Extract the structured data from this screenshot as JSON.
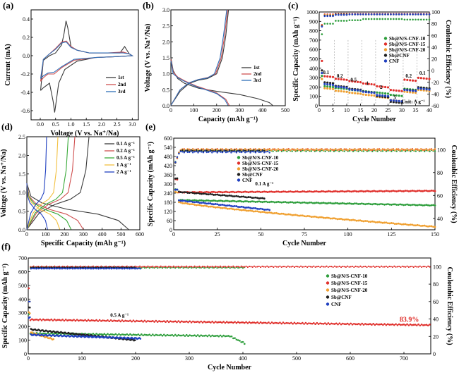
{
  "chart_data": [
    {
      "id": "a",
      "type": "line",
      "panel_label": "(a)",
      "xlabel": "Voltage (V vs. Na⁺/Na)",
      "ylabel": "Current (mA)",
      "xlim": [
        -0.3,
        3.2
      ],
      "ylim": [
        -0.7,
        0.5
      ],
      "xticks": [
        0.0,
        0.5,
        1.0,
        1.5,
        2.0,
        2.5,
        3.0
      ],
      "yticks": [
        -0.6,
        -0.4,
        -0.2,
        0.0,
        0.2,
        0.4
      ],
      "legend": {
        "position": "center-right",
        "entries": [
          "1st",
          "2nd",
          "3rd"
        ]
      },
      "series": [
        {
          "name": "1st",
          "color": "#3a3a3a",
          "points": [
            [
              0.01,
              -0.38
            ],
            [
              0.1,
              -0.35
            ],
            [
              0.3,
              -0.3
            ],
            [
              0.42,
              -0.5
            ],
            [
              0.47,
              -0.62
            ],
            [
              0.52,
              -0.5
            ],
            [
              0.6,
              -0.3
            ],
            [
              0.8,
              -0.15
            ],
            [
              1.2,
              -0.06
            ],
            [
              1.8,
              -0.02
            ],
            [
              2.5,
              -0.01
            ],
            [
              3.0,
              0.0
            ],
            [
              2.9,
              0.02
            ],
            [
              2.75,
              0.1
            ],
            [
              2.6,
              0.03
            ],
            [
              2.2,
              0.03
            ],
            [
              1.6,
              0.03
            ],
            [
              1.2,
              0.06
            ],
            [
              1.0,
              0.1
            ],
            [
              0.9,
              0.3
            ],
            [
              0.84,
              0.38
            ],
            [
              0.78,
              0.25
            ],
            [
              0.7,
              0.12
            ],
            [
              0.5,
              0.03
            ],
            [
              0.3,
              0.0
            ],
            [
              0.1,
              -0.05
            ],
            [
              0.01,
              -0.38
            ]
          ]
        },
        {
          "name": "2nd",
          "color": "#d05050",
          "points": [
            [
              0.01,
              -0.28
            ],
            [
              0.1,
              -0.24
            ],
            [
              0.25,
              -0.2
            ],
            [
              0.45,
              -0.2
            ],
            [
              0.7,
              -0.13
            ],
            [
              1.1,
              -0.05
            ],
            [
              1.8,
              -0.02
            ],
            [
              2.5,
              -0.01
            ],
            [
              3.0,
              0.0
            ],
            [
              2.9,
              0.02
            ],
            [
              2.7,
              0.04
            ],
            [
              2.2,
              0.03
            ],
            [
              1.6,
              0.03
            ],
            [
              1.2,
              0.06
            ],
            [
              1.0,
              0.1
            ],
            [
              0.85,
              0.16
            ],
            [
              0.7,
              0.15
            ],
            [
              0.5,
              0.08
            ],
            [
              0.3,
              0.02
            ],
            [
              0.1,
              -0.04
            ],
            [
              0.01,
              -0.28
            ]
          ]
        },
        {
          "name": "3rd",
          "color": "#3070b8",
          "points": [
            [
              0.01,
              -0.25
            ],
            [
              0.1,
              -0.22
            ],
            [
              0.25,
              -0.19
            ],
            [
              0.45,
              -0.18
            ],
            [
              0.7,
              -0.12
            ],
            [
              1.1,
              -0.04
            ],
            [
              1.8,
              -0.02
            ],
            [
              2.5,
              -0.01
            ],
            [
              3.0,
              0.0
            ],
            [
              2.9,
              0.02
            ],
            [
              2.7,
              0.03
            ],
            [
              2.2,
              0.03
            ],
            [
              1.6,
              0.03
            ],
            [
              1.2,
              0.06
            ],
            [
              1.0,
              0.09
            ],
            [
              0.85,
              0.15
            ],
            [
              0.7,
              0.14
            ],
            [
              0.5,
              0.07
            ],
            [
              0.3,
              0.02
            ],
            [
              0.1,
              -0.04
            ],
            [
              0.01,
              -0.25
            ]
          ]
        }
      ]
    },
    {
      "id": "b",
      "type": "line",
      "panel_label": "(b)",
      "xlabel": "Capacity (mAh g⁻¹)",
      "ylabel": "Voltage (V vs. Na⁺/Na)",
      "xlim": [
        0,
        500
      ],
      "ylim": [
        0,
        3.0
      ],
      "xticks": [
        0,
        100,
        200,
        300,
        400,
        500
      ],
      "yticks": [
        0.0,
        0.5,
        1.0,
        1.5,
        2.0,
        2.5,
        3.0
      ],
      "legend": {
        "position": "bottom-right",
        "entries": [
          "1st",
          "2nd",
          "3rd"
        ]
      },
      "series": [
        {
          "name": "1st",
          "color": "#3a3a3a",
          "points": [
            [
              0,
              1.5
            ],
            [
              10,
              1.1
            ],
            [
              30,
              0.85
            ],
            [
              60,
              0.7
            ],
            [
              120,
              0.55
            ],
            [
              200,
              0.45
            ],
            [
              300,
              0.35
            ],
            [
              380,
              0.22
            ],
            [
              430,
              0.1
            ],
            [
              445,
              0.01
            ]
          ]
        },
        {
          "name": "1st",
          "color": "#3a3a3a",
          "points": [
            [
              0,
              0.01
            ],
            [
              40,
              0.45
            ],
            [
              80,
              0.7
            ],
            [
              120,
              0.8
            ],
            [
              160,
              0.85
            ],
            [
              200,
              1.0
            ],
            [
              225,
              1.5
            ],
            [
              240,
              2.2
            ],
            [
              252,
              3.0
            ]
          ]
        },
        {
          "name": "2nd",
          "color": "#d05050",
          "points": [
            [
              0,
              1.45
            ],
            [
              10,
              1.05
            ],
            [
              30,
              0.9
            ],
            [
              60,
              0.78
            ],
            [
              110,
              0.62
            ],
            [
              160,
              0.5
            ],
            [
              200,
              0.4
            ],
            [
              240,
              0.2
            ],
            [
              255,
              0.01
            ]
          ]
        },
        {
          "name": "2nd",
          "color": "#d05050",
          "points": [
            [
              0,
              0.01
            ],
            [
              40,
              0.5
            ],
            [
              80,
              0.72
            ],
            [
              120,
              0.82
            ],
            [
              160,
              0.88
            ],
            [
              195,
              1.0
            ],
            [
              220,
              1.5
            ],
            [
              235,
              2.2
            ],
            [
              248,
              3.0
            ]
          ]
        },
        {
          "name": "3rd",
          "color": "#3070b8",
          "points": [
            [
              0,
              1.4
            ],
            [
              10,
              1.0
            ],
            [
              30,
              0.88
            ],
            [
              60,
              0.76
            ],
            [
              110,
              0.6
            ],
            [
              160,
              0.48
            ],
            [
              200,
              0.38
            ],
            [
              235,
              0.2
            ],
            [
              250,
              0.01
            ]
          ]
        },
        {
          "name": "3rd",
          "color": "#3070b8",
          "points": [
            [
              0,
              0.01
            ],
            [
              40,
              0.5
            ],
            [
              80,
              0.72
            ],
            [
              120,
              0.82
            ],
            [
              160,
              0.87
            ],
            [
              190,
              1.0
            ],
            [
              215,
              1.5
            ],
            [
              230,
              2.2
            ],
            [
              244,
              3.0
            ]
          ]
        }
      ]
    },
    {
      "id": "c",
      "type": "scatter",
      "panel_label": "(c)",
      "xlabel": "Cycle Number",
      "ylabel": "Specific Capacity (mAh g⁻¹)",
      "ylabel_right": "Coulombic Efficiency (%)",
      "xlim": [
        0,
        40
      ],
      "ylim": [
        0,
        1000
      ],
      "ylim_right": [
        -60,
        100
      ],
      "xticks": [
        0,
        5,
        10,
        15,
        20,
        25,
        30,
        35,
        40
      ],
      "yticks": [
        0,
        100,
        200,
        300,
        400,
        500,
        600,
        700,
        800,
        900,
        1000
      ],
      "yticks_right": [
        -60,
        -40,
        -20,
        0,
        20,
        40,
        60,
        80,
        100
      ],
      "legend": {
        "position": "center-right",
        "entries": [
          "Sb@N/S-CNF-10",
          "Sb@N/S-CNF-15",
          "Sb@N/S-CNF-20",
          "Sb@CNF",
          "CNF"
        ]
      },
      "rate_labels": [
        "0.1",
        "0.2",
        "0.5",
        "1",
        "2",
        "5",
        "0.2",
        "0.1"
      ],
      "unit_label": "Unit: A g⁻¹",
      "series": [
        {
          "name": "Sb@N/S-CNF-10",
          "color": "#2e9e3c",
          "levels": [
            215,
            195,
            175,
            160,
            145,
            120,
            185,
            200
          ],
          "ce": [
            80,
            85,
            86,
            88,
            88,
            88,
            87,
            87
          ]
        },
        {
          "name": "Sb@N/S-CNF-15",
          "color": "#e0302c",
          "levels": [
            320,
            290,
            265,
            240,
            210,
            170,
            280,
            300
          ],
          "ce": [
            96,
            97,
            97,
            97,
            97,
            97,
            97,
            97
          ]
        },
        {
          "name": "Sb@N/S-CNF-20",
          "color": "#f0a030",
          "levels": [
            190,
            160,
            140,
            120,
            95,
            60,
            150,
            170
          ],
          "ce": [
            95,
            96,
            96,
            96,
            96,
            96,
            96,
            96
          ]
        },
        {
          "name": "Sb@CNF",
          "color": "#202020",
          "levels": [
            250,
            210,
            180,
            150,
            100,
            40,
            170,
            195
          ],
          "ce": [
            94,
            96,
            96,
            96,
            96,
            96,
            96,
            96
          ]
        },
        {
          "name": "CNF",
          "color": "#2040c0",
          "levels": [
            230,
            200,
            170,
            145,
            110,
            55,
            165,
            180
          ],
          "ce": [
            93,
            95,
            96,
            96,
            96,
            96,
            96,
            96
          ]
        }
      ]
    },
    {
      "id": "d",
      "type": "line",
      "panel_label": "(d)",
      "xlabel": "Specific Capacity (mAh g⁻¹)",
      "ylabel": "Voltage (V vs. Na⁺/Na)",
      "xlim": [
        0,
        600
      ],
      "ylim": [
        0,
        2.5
      ],
      "xticks": [
        0,
        100,
        200,
        300,
        400,
        500,
        600
      ],
      "yticks": [
        0.0,
        0.5,
        1.0,
        1.5,
        2.0,
        2.5
      ],
      "legend": {
        "position": "top-right",
        "entries": [
          "0.1 A g⁻¹",
          "0.2 A g⁻¹",
          "0.5 A g⁻¹",
          "1 A g⁻¹",
          "2 A g⁻¹"
        ]
      },
      "series": [
        {
          "name": "0.1 A g⁻¹",
          "color": "#3a3a3a",
          "cap": 540,
          "charge_cap": 330
        },
        {
          "name": "0.2 A g⁻¹",
          "color": "#d05050",
          "cap": 300,
          "charge_cap": 255
        },
        {
          "name": "0.5 A g⁻¹",
          "color": "#3aaa3a",
          "cap": 235,
          "charge_cap": 220
        },
        {
          "name": "1 A g⁻¹",
          "color": "#f2c040",
          "cap": 175,
          "charge_cap": 165
        },
        {
          "name": "2 A g⁻¹",
          "color": "#2040c0",
          "cap": 110,
          "charge_cap": 105
        }
      ]
    },
    {
      "id": "e",
      "type": "scatter",
      "panel_label": "(e)",
      "xlabel": "Cycle Number",
      "ylabel": "Specific Capacity (mAh g⁻¹)",
      "ylabel_right": "Coulombic Efficiency (%)",
      "xlim": [
        0,
        150
      ],
      "ylim": [
        0,
        600
      ],
      "ylim_right": [
        30,
        110
      ],
      "xticks": [
        0,
        25,
        50,
        75,
        100,
        125,
        150
      ],
      "yticks": [
        0,
        60,
        120,
        180,
        240,
        300,
        360,
        420,
        480,
        540,
        600
      ],
      "yticks_right": [
        40,
        60,
        80,
        100
      ],
      "annotation": "0.1 A g⁻¹",
      "legend": {
        "position": "top-center",
        "entries": [
          "Sb@N/S-CNF-10",
          "Sb@N/S-CNF-15",
          "Sb@N/S-CNF-20",
          "Sb@CNF",
          "CNF"
        ]
      },
      "series": [
        {
          "name": "Sb@N/S-CNF-10",
          "color": "#2e9e3c",
          "start": 195,
          "end": 160,
          "n": 150,
          "ce": 99
        },
        {
          "name": "Sb@N/S-CNF-15",
          "color": "#e0302c",
          "start": 245,
          "end": 255,
          "n": 150,
          "ce": 100
        },
        {
          "name": "Sb@N/S-CNF-20",
          "color": "#f0a030",
          "start": 185,
          "end": 20,
          "n": 150,
          "ce": 100
        },
        {
          "name": "Sb@CNF",
          "color": "#202020",
          "start": 250,
          "end": 205,
          "n": 52,
          "ce": 99
        },
        {
          "name": "CNF",
          "color": "#2040c0",
          "start": 195,
          "end": 130,
          "n": 55,
          "ce": 98
        }
      ]
    },
    {
      "id": "f",
      "type": "scatter",
      "panel_label": "(f)",
      "xlabel": "Cycle Number",
      "ylabel": "Specific Capacity (mAh g⁻¹)",
      "ylabel_right": "Coulombic Efficiency (%)",
      "xlim": [
        0,
        750
      ],
      "ylim": [
        0,
        700
      ],
      "ylim_right": [
        0,
        110
      ],
      "xticks": [
        0,
        100,
        200,
        300,
        400,
        500,
        600,
        700
      ],
      "yticks": [
        0,
        100,
        200,
        300,
        400,
        500,
        600,
        700
      ],
      "yticks_right": [
        0,
        20,
        40,
        60,
        80,
        100
      ],
      "annotation": "0.5 A g⁻¹",
      "retention_label": "83.9%",
      "legend": {
        "position": "center-right",
        "entries": [
          "Sb@N/S-CNF-10",
          "Sb@N/S-CNF-15",
          "Sb@N/S-CNF-20",
          "Sb@CNF",
          "CNF"
        ]
      },
      "series": [
        {
          "name": "Sb@N/S-CNF-10",
          "color": "#2e9e3c",
          "start": 150,
          "end": 128,
          "n": 405,
          "ce": 99
        },
        {
          "name": "Sb@N/S-CNF-15",
          "color": "#e0302c",
          "start": 250,
          "end": 210,
          "n": 750,
          "ce": 100
        },
        {
          "name": "Sb@N/S-CNF-20",
          "color": "#f0a030",
          "start": 160,
          "end": 105,
          "n": 48,
          "ce": 99
        },
        {
          "name": "Sb@CNF",
          "color": "#202020",
          "start": 180,
          "end": 100,
          "n": 200,
          "ce": 99
        },
        {
          "name": "CNF",
          "color": "#2040c0",
          "start": 140,
          "end": 112,
          "n": 210,
          "ce": 98
        }
      ]
    }
  ]
}
